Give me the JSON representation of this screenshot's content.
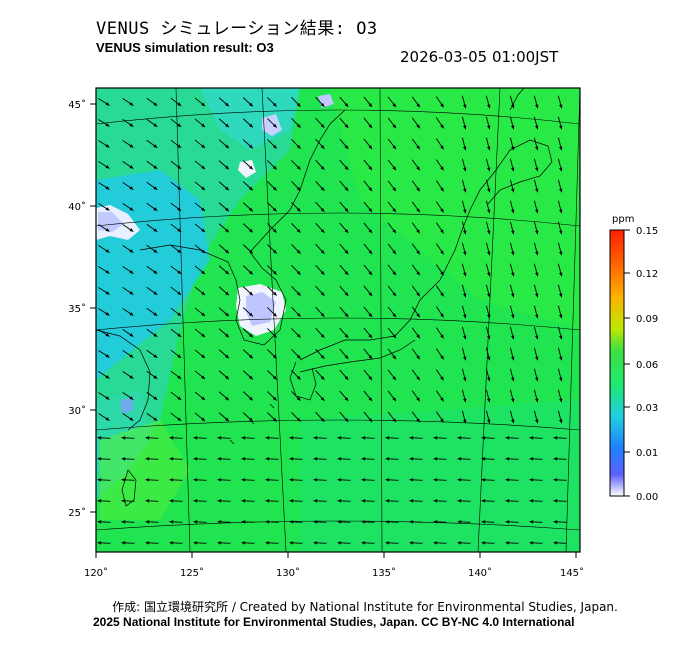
{
  "header": {
    "title_jp": "VENUS シミュレーション結果: O3",
    "title_en": "VENUS simulation result: O3",
    "timestamp": "2026-03-05 01:00JST"
  },
  "map": {
    "lon_ticks": [
      "120˚",
      "125˚",
      "130˚",
      "135˚",
      "140˚",
      "145˚"
    ],
    "lat_ticks": [
      "45˚",
      "40˚",
      "35˚",
      "30˚",
      "25˚"
    ],
    "lon_range": [
      120,
      145
    ],
    "lat_range": [
      23,
      46
    ],
    "dominant_wind": "north-westerly to north-easterly",
    "background_color": "#22e84a"
  },
  "colorbar": {
    "unit": "ppm",
    "ticks": [
      "0.15",
      "0.12",
      "0.09",
      "0.06",
      "0.03",
      "0.01",
      "0.00"
    ],
    "colors": [
      "#ff2000",
      "#ff8000",
      "#ffe000",
      "#20d020",
      "#20c8ff",
      "#2040ff",
      "#ffffff"
    ]
  },
  "footer": {
    "credit_jp": "作成: 国立環境研究所 / Created by National Institute for Environmental Studies, Japan.",
    "credit_en": "2025 National Institute for Environmental Studies, Japan. CC BY-NC 4.0 International"
  }
}
